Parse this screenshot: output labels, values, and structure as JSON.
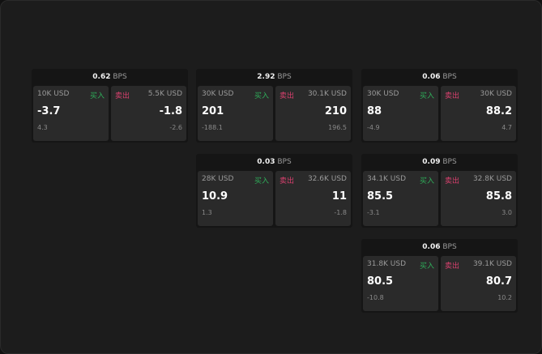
{
  "unit": "BPS",
  "buy_label": "买入",
  "sell_label": "卖出",
  "colors": {
    "buy": "#2fae5a",
    "sell": "#d8406e"
  },
  "cards": [
    {
      "spread": "0.62",
      "bid": {
        "size": "10K USD",
        "price": "-3.7",
        "change": "4.3"
      },
      "ask": {
        "size": "5.5K USD",
        "price": "-1.8",
        "change": "-2.6"
      }
    },
    {
      "spread": "2.92",
      "bid": {
        "size": "30K USD",
        "price": "201",
        "change": "-188.1"
      },
      "ask": {
        "size": "30.1K USD",
        "price": "210",
        "change": "196.5"
      }
    },
    {
      "spread": "0.06",
      "bid": {
        "size": "30K USD",
        "price": "88",
        "change": "-4.9"
      },
      "ask": {
        "size": "30K USD",
        "price": "88.2",
        "change": "4.7"
      }
    },
    {
      "spread": "0.03",
      "bid": {
        "size": "28K USD",
        "price": "10.9",
        "change": "1.3"
      },
      "ask": {
        "size": "32.6K USD",
        "price": "11",
        "change": "-1.8"
      }
    },
    {
      "spread": "0.09",
      "bid": {
        "size": "34.1K USD",
        "price": "85.5",
        "change": "-3.1"
      },
      "ask": {
        "size": "32.8K USD",
        "price": "85.8",
        "change": "3.0"
      }
    },
    {
      "spread": "0.06",
      "bid": {
        "size": "31.8K USD",
        "price": "80.5",
        "change": "-10.8"
      },
      "ask": {
        "size": "39.1K USD",
        "price": "80.7",
        "change": "10.2"
      }
    }
  ]
}
